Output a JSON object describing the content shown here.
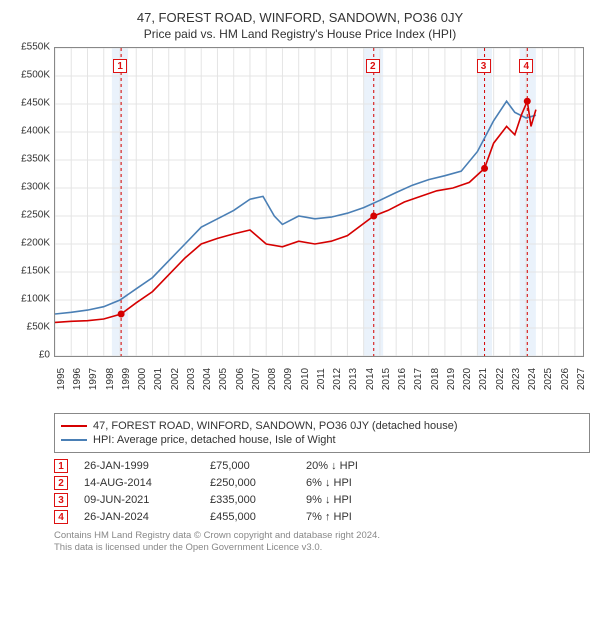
{
  "title": "47, FOREST ROAD, WINFORD, SANDOWN, PO36 0JY",
  "subtitle": "Price paid vs. HM Land Registry's House Price Index (HPI)",
  "chart": {
    "type": "line",
    "xlim": [
      1995,
      2027.5
    ],
    "ylim": [
      0,
      550000
    ],
    "ytick_step": 50000,
    "yticks": [
      "£0",
      "£50K",
      "£100K",
      "£150K",
      "£200K",
      "£250K",
      "£300K",
      "£350K",
      "£400K",
      "£450K",
      "£500K",
      "£550K"
    ],
    "xticks": [
      1995,
      1996,
      1997,
      1998,
      1999,
      2000,
      2001,
      2002,
      2003,
      2004,
      2005,
      2006,
      2007,
      2008,
      2009,
      2010,
      2011,
      2012,
      2013,
      2014,
      2015,
      2016,
      2017,
      2018,
      2019,
      2020,
      2021,
      2022,
      2023,
      2024,
      2025,
      2026,
      2027
    ],
    "grid_color": "#e4e4e4",
    "background_color": "#ffffff",
    "shaded_color": "#eaf2fb",
    "line_width": 1.6,
    "series": [
      {
        "name": "price_paid",
        "label": "47, FOREST ROAD, WINFORD, SANDOWN, PO36 0JY (detached house)",
        "color": "#d50000",
        "points": [
          [
            1995.0,
            60000
          ],
          [
            1996.0,
            62000
          ],
          [
            1997.0,
            63000
          ],
          [
            1998.0,
            66000
          ],
          [
            1999.07,
            75000
          ],
          [
            2000.0,
            95000
          ],
          [
            2001.0,
            115000
          ],
          [
            2002.0,
            145000
          ],
          [
            2003.0,
            175000
          ],
          [
            2004.0,
            200000
          ],
          [
            2005.0,
            210000
          ],
          [
            2006.0,
            218000
          ],
          [
            2007.0,
            225000
          ],
          [
            2008.0,
            200000
          ],
          [
            2009.0,
            195000
          ],
          [
            2010.0,
            205000
          ],
          [
            2011.0,
            200000
          ],
          [
            2012.0,
            205000
          ],
          [
            2013.0,
            215000
          ],
          [
            2014.62,
            250000
          ],
          [
            2015.5,
            260000
          ],
          [
            2016.5,
            275000
          ],
          [
            2017.5,
            285000
          ],
          [
            2018.5,
            295000
          ],
          [
            2019.5,
            300000
          ],
          [
            2020.5,
            310000
          ],
          [
            2021.44,
            335000
          ],
          [
            2022.0,
            380000
          ],
          [
            2022.8,
            410000
          ],
          [
            2023.3,
            395000
          ],
          [
            2023.7,
            430000
          ],
          [
            2024.07,
            455000
          ],
          [
            2024.3,
            410000
          ],
          [
            2024.6,
            440000
          ]
        ]
      },
      {
        "name": "hpi",
        "label": "HPI: Average price, detached house, Isle of Wight",
        "color": "#4a7fb5",
        "points": [
          [
            1995.0,
            75000
          ],
          [
            1996.0,
            78000
          ],
          [
            1997.0,
            82000
          ],
          [
            1998.0,
            88000
          ],
          [
            1999.0,
            100000
          ],
          [
            2000.0,
            120000
          ],
          [
            2001.0,
            140000
          ],
          [
            2002.0,
            170000
          ],
          [
            2003.0,
            200000
          ],
          [
            2004.0,
            230000
          ],
          [
            2005.0,
            245000
          ],
          [
            2006.0,
            260000
          ],
          [
            2007.0,
            280000
          ],
          [
            2007.8,
            285000
          ],
          [
            2008.5,
            250000
          ],
          [
            2009.0,
            235000
          ],
          [
            2010.0,
            250000
          ],
          [
            2011.0,
            245000
          ],
          [
            2012.0,
            248000
          ],
          [
            2013.0,
            255000
          ],
          [
            2014.0,
            265000
          ],
          [
            2015.0,
            278000
          ],
          [
            2016.0,
            292000
          ],
          [
            2017.0,
            305000
          ],
          [
            2018.0,
            315000
          ],
          [
            2019.0,
            322000
          ],
          [
            2020.0,
            330000
          ],
          [
            2021.0,
            365000
          ],
          [
            2022.0,
            420000
          ],
          [
            2022.8,
            455000
          ],
          [
            2023.3,
            435000
          ],
          [
            2024.0,
            425000
          ],
          [
            2024.6,
            430000
          ]
        ]
      }
    ],
    "transaction_markers": [
      {
        "n": 1,
        "x": 1999.07,
        "y": 75000
      },
      {
        "n": 2,
        "x": 2014.62,
        "y": 250000
      },
      {
        "n": 3,
        "x": 2021.44,
        "y": 335000
      },
      {
        "n": 4,
        "x": 2024.07,
        "y": 455000
      }
    ],
    "shaded_bands": [
      [
        1998.5,
        1999.5
      ],
      [
        2014.0,
        2015.2
      ],
      [
        2021.0,
        2021.9
      ],
      [
        2023.6,
        2024.6
      ]
    ]
  },
  "legend": [
    {
      "color": "#d50000",
      "label": "47, FOREST ROAD, WINFORD, SANDOWN, PO36 0JY (detached house)"
    },
    {
      "color": "#4a7fb5",
      "label": "HPI: Average price, detached house, Isle of Wight"
    }
  ],
  "transactions": [
    {
      "n": "1",
      "date": "26-JAN-1999",
      "price": "£75,000",
      "diff": "20% ↓ HPI"
    },
    {
      "n": "2",
      "date": "14-AUG-2014",
      "price": "£250,000",
      "diff": "6% ↓ HPI"
    },
    {
      "n": "3",
      "date": "09-JUN-2021",
      "price": "£335,000",
      "diff": "9% ↓ HPI"
    },
    {
      "n": "4",
      "date": "26-JAN-2024",
      "price": "£455,000",
      "diff": "7% ↑ HPI"
    }
  ],
  "footer1": "Contains HM Land Registry data © Crown copyright and database right 2024.",
  "footer2": "This data is licensed under the Open Government Licence v3.0."
}
